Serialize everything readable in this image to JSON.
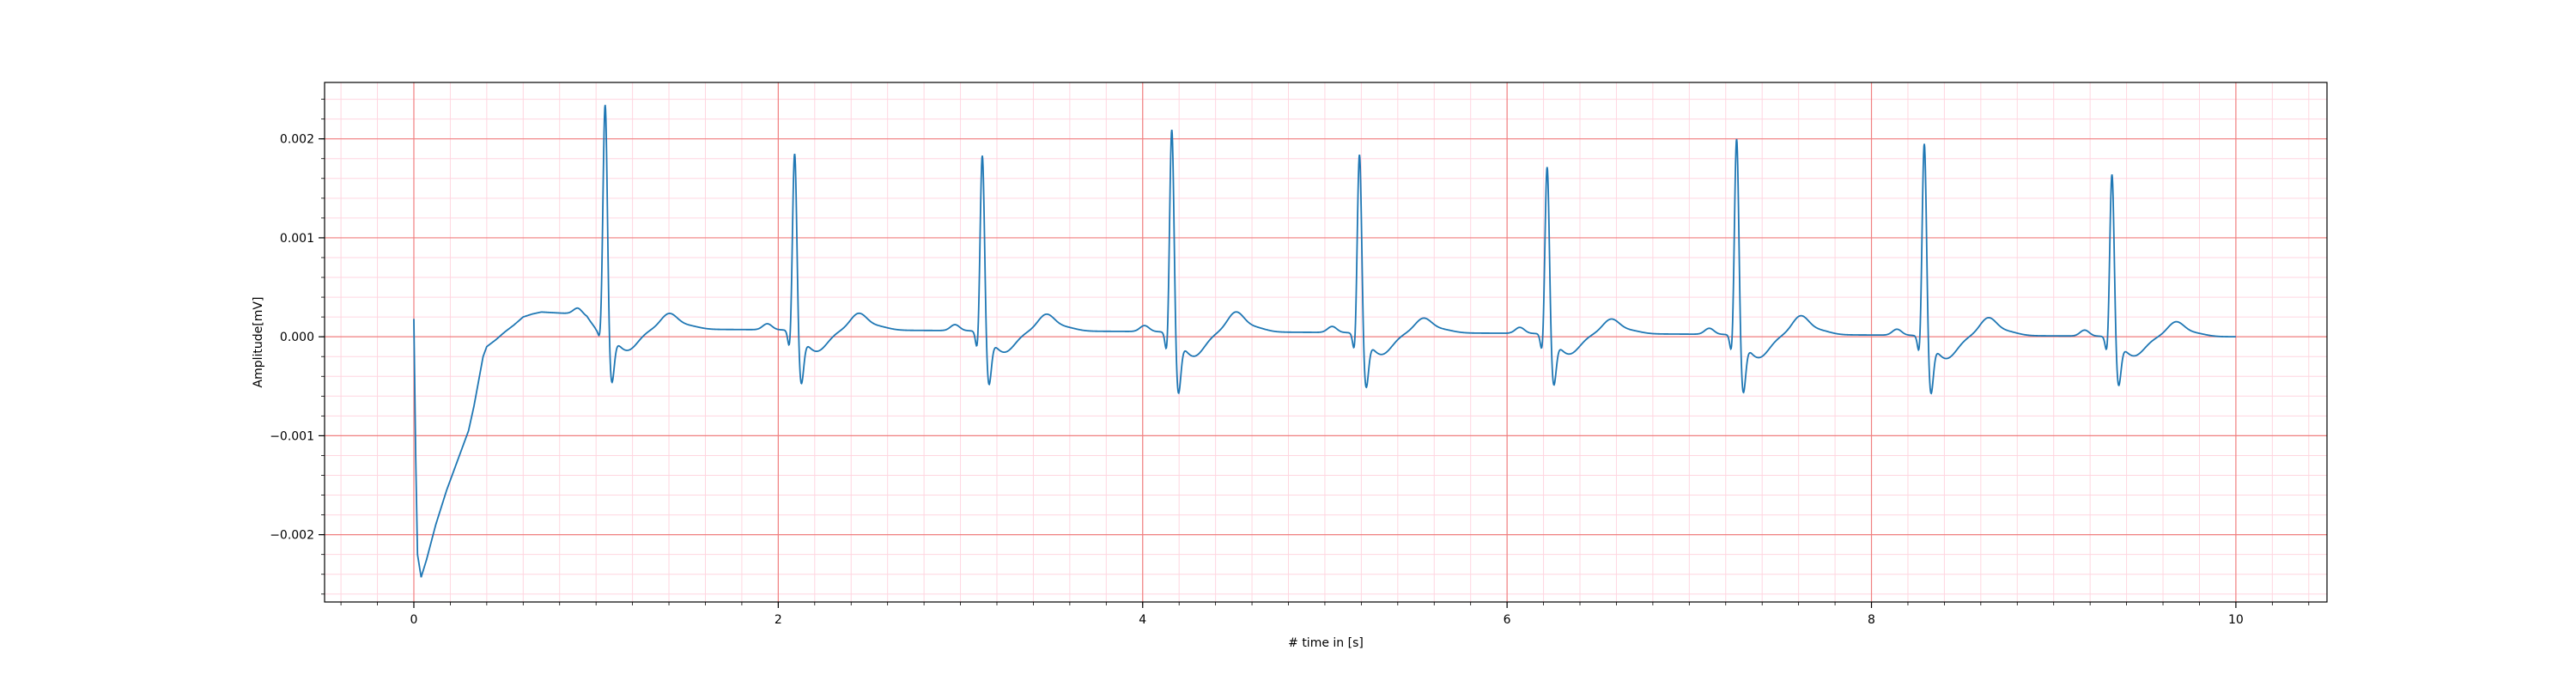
{
  "chart_data": {
    "type": "line",
    "title": "",
    "xlabel": "# time in [s]",
    "ylabel": "Amplitude[mV]",
    "xlim": [
      -0.49,
      10.5
    ],
    "ylim": [
      -0.00268,
      0.00257
    ],
    "x_major_ticks": [
      0,
      2,
      4,
      6,
      8,
      10
    ],
    "x_tick_labels": [
      "0",
      "2",
      "4",
      "6",
      "8",
      "10"
    ],
    "y_major_ticks": [
      -0.002,
      -0.001,
      0.0,
      0.001,
      0.002
    ],
    "y_tick_labels": [
      "−0.002",
      "−0.001",
      "0.000",
      "0.001",
      "0.002"
    ],
    "x_minor_step": 0.2,
    "y_minor_step": 0.0002,
    "grid": true,
    "colors": {
      "line": "#1f77b4",
      "major_grid": "#f08080",
      "minor_grid": "#ffd6e0",
      "axes": "#000000"
    },
    "series": [
      {
        "baseline_points": [
          [
            0.0,
            0.00018
          ],
          [
            0.01,
            -0.0012
          ],
          [
            0.02,
            -0.0022
          ],
          [
            0.04,
            -0.00243
          ],
          [
            0.07,
            -0.00225
          ],
          [
            0.12,
            -0.0019
          ],
          [
            0.18,
            -0.00155
          ],
          [
            0.25,
            -0.0012
          ],
          [
            0.3,
            -0.00095
          ],
          [
            0.33,
            -0.0007
          ],
          [
            0.36,
            -0.0004
          ],
          [
            0.38,
            -0.0002
          ],
          [
            0.4,
            -0.0001
          ],
          [
            0.45,
            -3e-05
          ],
          [
            0.5,
            5e-05
          ],
          [
            0.55,
            0.00012
          ],
          [
            0.6,
            0.0002
          ],
          [
            0.65,
            0.00023
          ],
          [
            0.7,
            0.00025
          ],
          [
            0.8,
            0.00024
          ],
          [
            0.9,
            0.00023
          ],
          [
            0.95,
            0.0002
          ],
          [
            1.0,
            8e-05
          ],
          [
            10.0,
            0.0
          ]
        ],
        "beats": [
          {
            "r_time": 1.05,
            "r_peak": 0.00232,
            "q_depth": -0.00015,
            "s_depth": -0.00048,
            "t_peak": 0.00015
          },
          {
            "r_time": 2.09,
            "r_peak": 0.00184,
            "q_depth": -0.00025,
            "s_depth": -0.00048,
            "t_peak": 0.00016
          },
          {
            "r_time": 3.12,
            "r_peak": 0.00183,
            "q_depth": -0.00025,
            "s_depth": -0.00048,
            "t_peak": 0.00016
          },
          {
            "r_time": 4.16,
            "r_peak": 0.00211,
            "q_depth": -0.00028,
            "s_depth": -0.00055,
            "t_peak": 0.00019
          },
          {
            "r_time": 5.19,
            "r_peak": 0.00186,
            "q_depth": -0.00025,
            "s_depth": -0.00049,
            "t_peak": 0.00014
          },
          {
            "r_time": 6.22,
            "r_peak": 0.00174,
            "q_depth": -0.00024,
            "s_depth": -0.00046,
            "t_peak": 0.00014
          },
          {
            "r_time": 7.26,
            "r_peak": 0.00204,
            "q_depth": -0.00025,
            "s_depth": -0.00052,
            "t_peak": 0.00018
          },
          {
            "r_time": 8.29,
            "r_peak": 0.002,
            "q_depth": -0.00025,
            "s_depth": -0.00052,
            "t_peak": 0.00017
          },
          {
            "r_time": 9.32,
            "r_peak": 0.00169,
            "q_depth": -0.00022,
            "s_depth": -0.00044,
            "t_peak": 0.00014
          }
        ],
        "x_end": 10.0
      }
    ]
  }
}
